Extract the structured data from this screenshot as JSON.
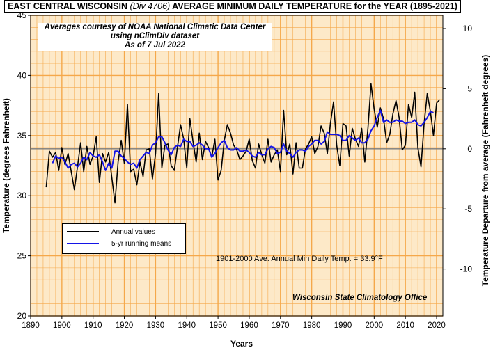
{
  "title": {
    "region": "EAST CENTRAL WISCONSIN",
    "division": "(Div 4706)",
    "rest": "AVERAGE MINIMUM DAILY TEMPERATURE for the YEAR (1895-2021)"
  },
  "credit": {
    "line1": "Averages courtesy of NOAA National Climatic Data Center",
    "line2": "using nClimDiv dataset",
    "line3": "As of 7 Jul 2022"
  },
  "legend": {
    "annual_label": "Annual values",
    "running_label": "5-yr running means"
  },
  "baseline_note": "1901-2000 Ave. Annual Min Daily Temp. = 33.9°F",
  "office_note": "Wisconsin State Climatology Office",
  "colors": {
    "plot_background": "#fde9c8",
    "grid": "#f5a84a",
    "annual_line": "#000000",
    "running_line": "#1414e6",
    "baseline": "#7a7a7a"
  },
  "chart_data": {
    "type": "line",
    "title": "EAST CENTRAL WISCONSIN (Div 4706) AVERAGE MINIMUM DAILY TEMPERATURE for the YEAR (1895-2021)",
    "xlabel": "Years",
    "ylabel": "Temperature  (degrees Fahrenheit)",
    "y2label": "Temperature Departure from average (Fahrenheit degrees)",
    "xlim": [
      1890,
      2022
    ],
    "ylim": [
      20,
      45
    ],
    "y2lim": [
      -13.9,
      11.1
    ],
    "x_ticks": [
      1890,
      1900,
      1910,
      1920,
      1930,
      1940,
      1950,
      1960,
      1970,
      1980,
      1990,
      2000,
      2010,
      2020
    ],
    "x_tick_labels": [
      "1890",
      "1900",
      "1910",
      "1920",
      "1930",
      "1940",
      "1950",
      "1960",
      "1970",
      "1980",
      "1990",
      "2000",
      "2010",
      "2020"
    ],
    "y_ticks": [
      20,
      25,
      30,
      35,
      40,
      45
    ],
    "y_tick_labels": [
      "20",
      "25",
      "30",
      "35",
      "40",
      "45"
    ],
    "y2_ticks": [
      -10,
      -5,
      0,
      5,
      10
    ],
    "y2_tick_labels": [
      "-10",
      "-5",
      "0",
      "5",
      "10"
    ],
    "baseline": 33.9,
    "grid": true,
    "legend_position": "lower-left",
    "series": [
      {
        "name": "Annual values",
        "x": [
          1895,
          1896,
          1897,
          1898,
          1899,
          1900,
          1901,
          1902,
          1903,
          1904,
          1905,
          1906,
          1907,
          1908,
          1909,
          1910,
          1911,
          1912,
          1913,
          1914,
          1915,
          1916,
          1917,
          1918,
          1919,
          1920,
          1921,
          1922,
          1923,
          1924,
          1925,
          1926,
          1927,
          1928,
          1929,
          1930,
          1931,
          1932,
          1933,
          1934,
          1935,
          1936,
          1937,
          1938,
          1939,
          1940,
          1941,
          1942,
          1943,
          1944,
          1945,
          1946,
          1947,
          1948,
          1949,
          1950,
          1951,
          1952,
          1953,
          1954,
          1955,
          1956,
          1957,
          1958,
          1959,
          1960,
          1961,
          1962,
          1963,
          1964,
          1965,
          1966,
          1967,
          1968,
          1969,
          1970,
          1971,
          1972,
          1973,
          1974,
          1975,
          1976,
          1977,
          1978,
          1979,
          1980,
          1981,
          1982,
          1983,
          1984,
          1985,
          1986,
          1987,
          1988,
          1989,
          1990,
          1991,
          1992,
          1993,
          1994,
          1995,
          1996,
          1997,
          1998,
          1999,
          2000,
          2001,
          2002,
          2003,
          2004,
          2005,
          2006,
          2007,
          2008,
          2009,
          2010,
          2011,
          2012,
          2013,
          2014,
          2015,
          2016,
          2017,
          2018,
          2019,
          2020,
          2021
        ],
        "values": [
          30.7,
          33.7,
          33.2,
          33.6,
          32.1,
          34.0,
          32.6,
          33.5,
          32.0,
          30.5,
          32.4,
          34.4,
          32.0,
          34.1,
          32.6,
          33.3,
          34.9,
          31.1,
          33.5,
          32.8,
          33.6,
          31.5,
          29.4,
          32.8,
          34.6,
          32.7,
          37.6,
          32.0,
          32.2,
          30.9,
          32.8,
          31.6,
          33.8,
          33.9,
          31.4,
          33.5,
          38.5,
          32.3,
          34.2,
          34.3,
          32.5,
          32.1,
          34.0,
          35.9,
          34.7,
          32.3,
          36.4,
          34.5,
          32.8,
          35.2,
          33.0,
          34.5,
          34.0,
          33.2,
          34.7,
          31.3,
          32.1,
          34.6,
          35.9,
          35.2,
          34.2,
          33.8,
          33.0,
          33.3,
          33.7,
          34.7,
          32.9,
          32.3,
          34.3,
          33.4,
          32.7,
          34.7,
          32.8,
          33.4,
          33.8,
          32.0,
          37.1,
          33.4,
          34.3,
          31.8,
          34.4,
          32.3,
          32.3,
          33.9,
          34.3,
          34.9,
          33.5,
          34.1,
          35.8,
          35.2,
          33.5,
          36.0,
          37.8,
          34.2,
          32.5,
          36.0,
          35.8,
          33.3,
          35.6,
          34.7,
          34.1,
          35.6,
          32.8,
          35.6,
          39.3,
          37.2,
          35.7,
          37.3,
          36.4,
          34.4,
          35.1,
          36.8,
          37.9,
          36.5,
          33.8,
          34.2,
          37.6,
          36.5,
          38.6,
          34.0,
          32.4,
          36.0,
          38.5,
          37.0,
          35.0,
          37.7,
          38.0
        ]
      },
      {
        "name": "5-yr running means",
        "x": [
          1897,
          1898,
          1899,
          1900,
          1901,
          1902,
          1903,
          1904,
          1905,
          1906,
          1907,
          1908,
          1909,
          1910,
          1911,
          1912,
          1913,
          1914,
          1915,
          1916,
          1917,
          1918,
          1919,
          1920,
          1921,
          1922,
          1923,
          1924,
          1925,
          1926,
          1927,
          1928,
          1929,
          1930,
          1931,
          1932,
          1933,
          1934,
          1935,
          1936,
          1937,
          1938,
          1939,
          1940,
          1941,
          1942,
          1943,
          1944,
          1945,
          1946,
          1947,
          1948,
          1949,
          1950,
          1951,
          1952,
          1953,
          1954,
          1955,
          1956,
          1957,
          1958,
          1959,
          1960,
          1961,
          1962,
          1963,
          1964,
          1965,
          1966,
          1967,
          1968,
          1969,
          1970,
          1971,
          1972,
          1973,
          1974,
          1975,
          1976,
          1977,
          1978,
          1979,
          1980,
          1981,
          1982,
          1983,
          1984,
          1985,
          1986,
          1987,
          1988,
          1989,
          1990,
          1991,
          1992,
          1993,
          1994,
          1995,
          1996,
          1997,
          1998,
          1999,
          2000,
          2001,
          2002,
          2003,
          2004,
          2005,
          2006,
          2007,
          2008,
          2009,
          2010,
          2011,
          2012,
          2013,
          2014,
          2015,
          2016,
          2017,
          2018,
          2019
        ],
        "values": [
          32.7,
          33.3,
          33.1,
          33.2,
          32.8,
          32.3,
          32.6,
          32.7,
          32.4,
          32.7,
          33.2,
          33.0,
          33.6,
          33.3,
          33.2,
          33.4,
          32.8,
          32.1,
          32.7,
          32.3,
          33.7,
          33.7,
          33.3,
          33.1,
          32.8,
          32.6,
          32.7,
          32.3,
          33.0,
          33.3,
          33.6,
          33.5,
          34.2,
          34.4,
          34.9,
          34.9,
          34.4,
          33.8,
          33.4,
          34.0,
          34.2,
          34.1,
          34.7,
          34.5,
          34.5,
          34.1,
          34.2,
          34.4,
          34.2,
          33.9,
          33.9,
          33.2,
          33.5,
          34.0,
          34.4,
          34.6,
          34.0,
          33.8,
          33.8,
          34.0,
          33.7,
          33.7,
          33.8,
          33.6,
          33.3,
          33.2,
          33.6,
          33.4,
          33.4,
          33.9,
          34.1,
          34.0,
          33.5,
          33.6,
          34.3,
          33.7,
          33.5,
          33.2,
          33.6,
          33.8,
          33.8,
          33.7,
          34.1,
          34.3,
          34.6,
          34.6,
          34.3,
          34.5,
          35.3,
          35.1,
          35.1,
          35.1,
          35.0,
          34.6,
          34.6,
          35.0,
          34.8,
          34.6,
          34.8,
          34.4,
          34.4,
          34.7,
          35.4,
          35.8,
          36.5,
          37.1,
          36.1,
          36.3,
          36.1,
          36.1,
          36.3,
          36.2,
          36.2,
          36.0,
          36.1,
          36.1,
          36.3,
          35.9,
          35.8,
          36.1,
          36.5,
          37.0,
          36.9
        ]
      }
    ]
  }
}
